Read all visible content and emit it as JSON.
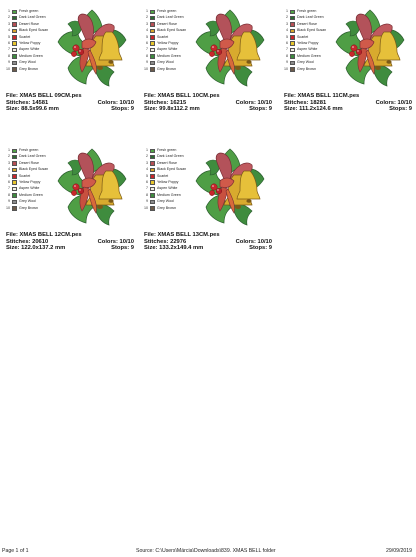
{
  "colors": [
    {
      "name": "Fresh green",
      "hex": "#52a447"
    },
    {
      "name": "Dark Leaf Green",
      "hex": "#2e6b34"
    },
    {
      "name": "Desert Rose",
      "hex": "#b64f55"
    },
    {
      "name": "Black Eyed Susan",
      "hex": "#d9a52b"
    },
    {
      "name": "Scarlet",
      "hex": "#c8262c"
    },
    {
      "name": "Yellow Poppy",
      "hex": "#e7c62e"
    },
    {
      "name": "Aspen White",
      "hex": "#f1efe6"
    },
    {
      "name": "Medium Green",
      "hex": "#3d8a3e"
    },
    {
      "name": "Grey Wool",
      "hex": "#8c8c8c"
    },
    {
      "name": "Grey Brown",
      "hex": "#6c5b4a"
    }
  ],
  "designs": [
    {
      "file": "File: XMAS BELL 09CM.pes",
      "stitches": "Stitches: 14581",
      "size": "Size: 88.5x99.6 mm",
      "colors": "Colors: 10/10",
      "stops": "Stops: 9"
    },
    {
      "file": "File: XMAS BELL 10CM.pes",
      "stitches": "Stitches: 16215",
      "size": "Size: 99.8x112.2 mm",
      "colors": "Colors: 10/10",
      "stops": "Stops: 9"
    },
    {
      "file": "File: XMAS BELL 11CM.pes",
      "stitches": "Stitches: 18281",
      "size": "Size: 111.2x124.6 mm",
      "colors": "Colors: 10/10",
      "stops": "Stops: 9"
    },
    {
      "file": "File: XMAS BELL 12CM.pes",
      "stitches": "Stitches: 20610",
      "size": "Size: 122.0x137.2 mm",
      "colors": "Colors: 10/10",
      "stops": "Stops: 9"
    },
    {
      "file": "File: XMAS BELL 13CM.pes",
      "stitches": "Stitches: 22976",
      "size": "Size: 133.2x149.4 mm",
      "colors": "Colors: 10/10",
      "stops": "Stops: 9"
    }
  ],
  "footer": {
    "page": "Page 1 of 1",
    "source": "Source: C:\\Users\\Márcia\\Downloads\\839. XMAS BELL folder",
    "date": "29/09/2019"
  }
}
